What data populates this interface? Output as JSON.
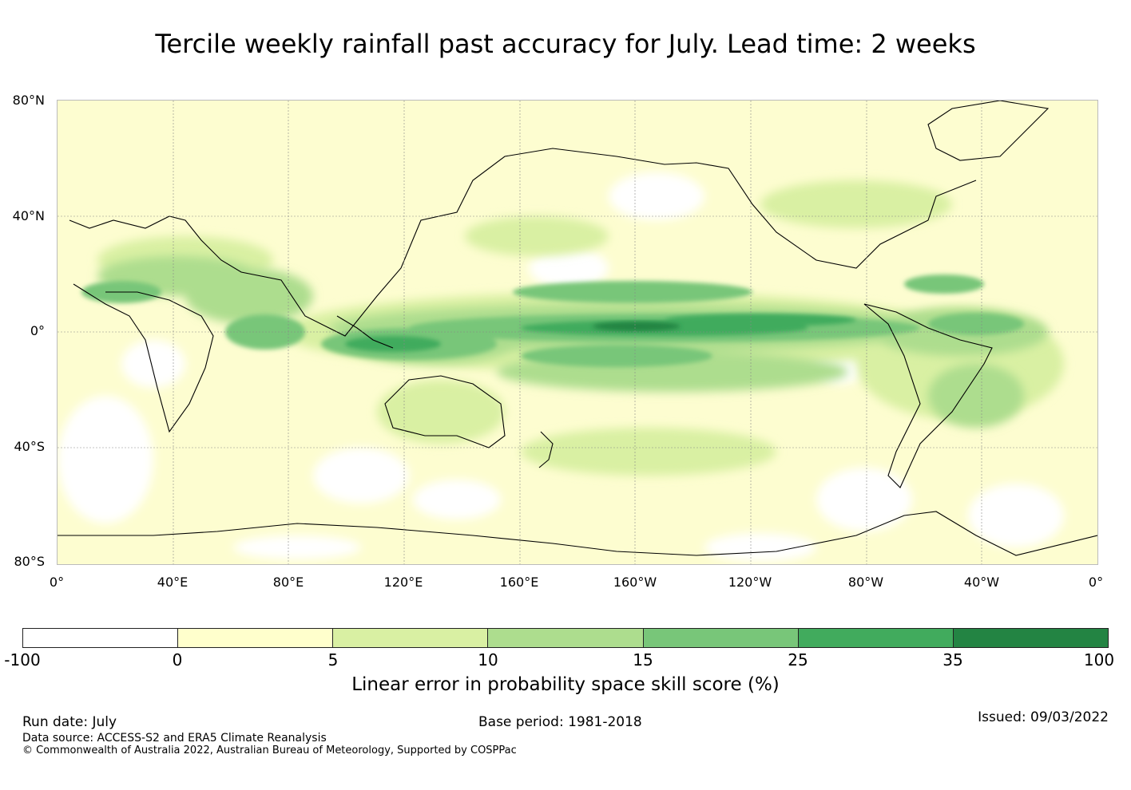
{
  "title": "Tercile weekly rainfall past accuracy for July. Lead time: 2 weeks",
  "map": {
    "lat_labels": [
      "80°N",
      "40°N",
      "0°",
      "40°S",
      "80°S"
    ],
    "lon_labels": [
      "0°",
      "40°E",
      "80°E",
      "120°E",
      "160°E",
      "160°W",
      "120°W",
      "80°W",
      "40°W",
      "0°"
    ]
  },
  "colorbar": {
    "tick_labels": [
      "-100",
      "0",
      "5",
      "10",
      "15",
      "25",
      "35",
      "100"
    ],
    "colors": [
      "#ffffff",
      "#ffffcc",
      "#d9f0a3",
      "#addd8e",
      "#78c679",
      "#41ab5d",
      "#238443"
    ],
    "label": "Linear error in probability space skill score (%)"
  },
  "footer": {
    "run_date": "Run date: July",
    "base_period": "Base period: 1981-2018",
    "issued": "Issued: 09/03/2022",
    "data_source": "Data source: ACCESS-S2 and ERA5 Climate Reanalysis",
    "copyright": "© Commonwealth of Australia 2022, Australian Bureau of Meteorology, Supported by COSPPac"
  }
}
